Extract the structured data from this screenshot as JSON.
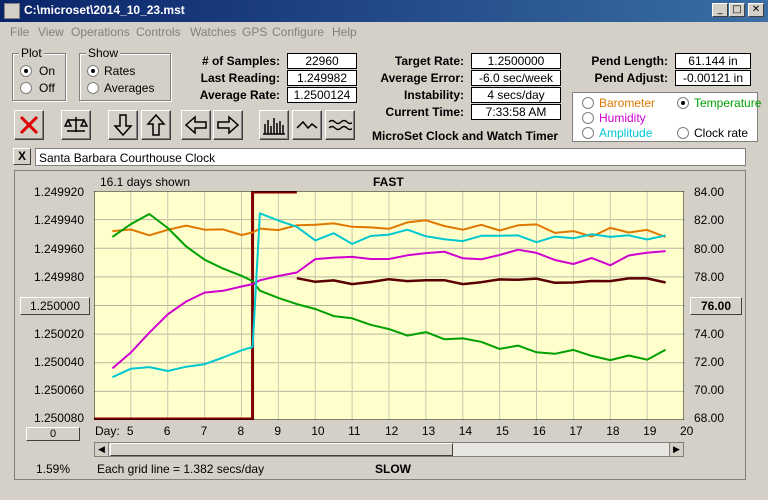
{
  "window": {
    "title": "C:\\microset\\2014_10_23.mst",
    "minimize": "_",
    "maximize": "□",
    "close": "✕"
  },
  "menu": [
    "File",
    "View",
    "Operations",
    "Controls",
    "Watches",
    "GPS",
    "Configure",
    "Help"
  ],
  "plot_group": {
    "title": "Plot",
    "on": "On",
    "off": "Off",
    "selected": "On"
  },
  "show_group": {
    "title": "Show",
    "rates": "Rates",
    "averages": "Averages",
    "selected": "Rates"
  },
  "stats": {
    "samples_label": "# of Samples:",
    "samples": "22960",
    "last_label": "Last Reading:",
    "last": "1.249982",
    "avg_label": "Average Rate:",
    "avg": "1.2500124",
    "target_label": "Target Rate:",
    "target": "1.2500000",
    "error_label": "Average Error:",
    "error": "-6.0 sec/week",
    "instab_label": "Instability:",
    "instab": "4 secs/day",
    "time_label": "Current Time:",
    "time": "7:33:58 AM",
    "pend_len_label": "Pend Length:",
    "pend_len": "61.144 in",
    "pend_adj_label": "Pend Adjust:",
    "pend_adj": "-0.00121 in"
  },
  "sensors": {
    "barometer": "Barometer",
    "temperature": "Temperature",
    "humidity": "Humidity",
    "amplitude": "Amplitude",
    "clock_rate": "Clock rate",
    "selected": "Temperature",
    "colors": {
      "barometer": "#e07800",
      "temperature": "#00a000",
      "humidity": "#d000d0",
      "amplitude": "#00c8d0",
      "clock_rate": "#000000"
    }
  },
  "app_title": "MicroSet Clock and Watch Timer",
  "clock_name": "Santa Barbara Courthouse Clock",
  "clear_label": "X",
  "plot": {
    "days_shown": "16.1 days shown",
    "fast_label": "FAST",
    "slow_label": "SLOW",
    "center_left": "1.250000",
    "center_right": "76.00",
    "zero_btn": "0",
    "percent": "1.59%",
    "grid_note": "Each grid line = 1.382 secs/day",
    "day_label": "Day:",
    "plot_bg": "#ffffcc",
    "highlight": "#800000"
  },
  "chart_data": {
    "type": "line",
    "x": [
      4.5,
      5,
      5.5,
      6,
      6.5,
      7,
      7.5,
      8,
      8.3,
      8.5,
      9,
      9.5,
      10,
      10.5,
      11,
      11.5,
      12,
      12.5,
      13,
      13.5,
      14,
      14.5,
      15,
      15.5,
      16,
      16.5,
      17,
      17.5,
      18,
      18.5,
      19,
      19.5
    ],
    "x_ticks": [
      "5",
      "6",
      "7",
      "8",
      "9",
      "10",
      "11",
      "12",
      "13",
      "14",
      "15",
      "16",
      "17",
      "18",
      "19",
      "20"
    ],
    "y_left_ticks": [
      "1.249920",
      "1.249940",
      "1.249960",
      "1.249980",
      "1.250000",
      "1.250020",
      "1.250040",
      "1.250060",
      "1.250080"
    ],
    "y_right_ticks": [
      "84.00",
      "82.00",
      "80.00",
      "78.00",
      "76.00",
      "74.00",
      "72.00",
      "70.00",
      "68.00"
    ],
    "ylim_left": [
      1.24992,
      1.25008
    ],
    "ylim_right": [
      68,
      84
    ],
    "series": [
      {
        "name": "Barometer",
        "color": "#e07800",
        "axis": "right",
        "values": [
          81.2,
          81.4,
          81.0,
          81.3,
          81.5,
          81.2,
          81.3,
          81.0,
          81.2,
          81.4,
          81.2,
          81.5,
          81.6,
          81.8,
          81.6,
          81.5,
          81.3,
          81.7,
          81.9,
          81.6,
          81.4,
          81.7,
          81.2,
          81.5,
          81.6,
          81.1,
          81.3,
          80.9,
          81.4,
          81.0,
          81.2,
          80.8
        ]
      },
      {
        "name": "Temperature",
        "color": "#00a000",
        "axis": "right",
        "values": [
          80.8,
          81.6,
          82.3,
          81.4,
          80.2,
          79.3,
          78.6,
          78.0,
          77.6,
          77.0,
          76.6,
          76.2,
          75.8,
          75.2,
          75.0,
          74.6,
          74.4,
          74.0,
          74.2,
          73.6,
          73.6,
          73.4,
          73.0,
          73.3,
          72.8,
          72.6,
          72.8,
          72.4,
          72.2,
          72.6,
          72.3,
          72.9
        ]
      },
      {
        "name": "Humidity",
        "color": "#d000d0",
        "axis": "right",
        "values": [
          71.6,
          72.8,
          74.2,
          75.4,
          76.2,
          76.8,
          77.0,
          77.4,
          77.6,
          77.8,
          78.0,
          78.2,
          79.2,
          79.4,
          79.5,
          79.3,
          79.2,
          79.4,
          79.6,
          79.8,
          79.4,
          79.3,
          79.5,
          79.8,
          79.6,
          79.2,
          79.0,
          79.4,
          78.8,
          79.4,
          79.6,
          79.8
        ]
      },
      {
        "name": "Amplitude",
        "color": "#00c8d0",
        "axis": "right",
        "values": [
          71.0,
          71.5,
          71.6,
          71.4,
          71.8,
          72.0,
          72.4,
          72.8,
          73.0,
          82.4,
          82.0,
          81.6,
          80.6,
          81.0,
          80.2,
          80.8,
          81.0,
          81.4,
          80.9,
          80.6,
          80.4,
          80.8,
          80.9,
          81.0,
          80.5,
          80.8,
          80.6,
          80.9,
          80.8,
          81.0,
          80.7,
          80.9
        ]
      },
      {
        "name": "Clock rate",
        "color": "#5a0000",
        "axis": "left",
        "values": [
          null,
          null,
          null,
          null,
          null,
          null,
          null,
          null,
          null,
          null,
          null,
          1.249982,
          1.249984,
          1.249982,
          1.249984,
          1.249983,
          1.249982,
          1.249984,
          1.249983,
          1.249982,
          1.249984,
          1.249983,
          1.249982,
          1.249983,
          1.249982,
          1.249984,
          1.249983,
          1.249982,
          1.249983,
          1.249982,
          1.249982,
          1.249984
        ]
      }
    ],
    "highlight_range": [
      8.3,
      9.5
    ],
    "title": "",
    "xlabel": "Day:",
    "grid": true
  }
}
